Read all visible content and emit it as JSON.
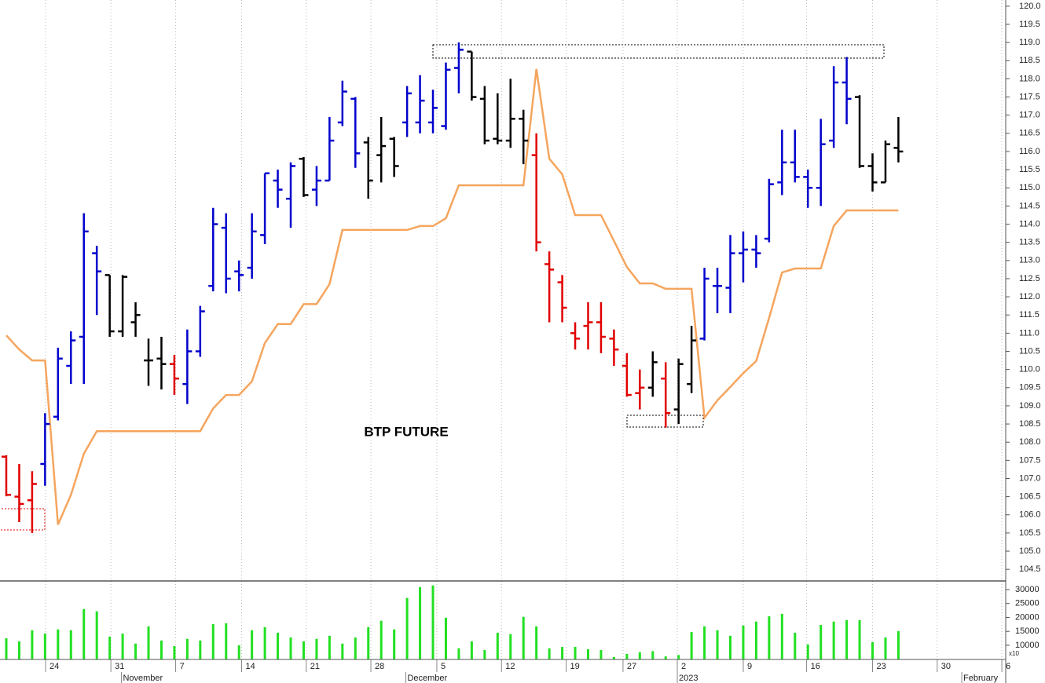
{
  "chart_data": [
    {
      "type": "ohlc",
      "title": "BTP FUTURE",
      "open": [
        107.6,
        106.5,
        106.4,
        107.4,
        108.7,
        110.1,
        110.9,
        113.2,
        112.6,
        111.05,
        111.3,
        110.25,
        110.3,
        110.15,
        109.6,
        110.5,
        112.3,
        113.9,
        112.7,
        112.8,
        113.7,
        115.2,
        114.7,
        115.8,
        114.95,
        115.2,
        116.8,
        117.45,
        116.25,
        115.9,
        116.35,
        116.8,
        116.8,
        116.8,
        116.7,
        118.3,
        118.75,
        117.45,
        116.35,
        116.3,
        116.9,
        115.9,
        112.9,
        112.4,
        111.0,
        111.2,
        111.3,
        110.85,
        110.1,
        109.35,
        109.5,
        109.75,
        108.9,
        109.6,
        110.85,
        112.3,
        112.25,
        113.2,
        113.3,
        113.6,
        115.15,
        115.7,
        115.3,
        115.0,
        116.3,
        117.9,
        117.5,
        115.6,
        115.15,
        116.1
      ],
      "high": [
        107.64,
        107.4,
        107.2,
        108.8,
        110.6,
        111.05,
        114.3,
        113.4,
        112.6,
        112.6,
        111.85,
        110.85,
        110.9,
        110.4,
        111.1,
        111.75,
        114.45,
        114.3,
        113.0,
        114.3,
        115.4,
        115.5,
        115.7,
        115.85,
        115.6,
        116.95,
        117.95,
        117.5,
        116.4,
        116.95,
        116.4,
        117.8,
        118.1,
        117.7,
        118.45,
        119.0,
        118.75,
        117.8,
        117.6,
        118.0,
        117.15,
        116.5,
        113.25,
        112.6,
        111.3,
        111.85,
        111.85,
        111.1,
        110.45,
        110.0,
        110.5,
        110.2,
        110.3,
        111.2,
        112.8,
        112.8,
        113.7,
        113.8,
        113.7,
        115.25,
        116.6,
        116.6,
        115.5,
        116.9,
        118.35,
        118.6,
        117.55,
        115.95,
        116.3,
        116.95
      ],
      "low": [
        106.51,
        105.8,
        105.5,
        106.8,
        108.6,
        109.6,
        109.6,
        111.5,
        110.9,
        110.9,
        110.9,
        109.55,
        109.45,
        109.3,
        109.05,
        110.35,
        112.15,
        112.1,
        112.15,
        112.5,
        113.45,
        114.45,
        113.9,
        114.75,
        114.5,
        115.2,
        116.7,
        115.55,
        114.7,
        115.15,
        115.3,
        116.4,
        116.5,
        116.5,
        116.6,
        117.6,
        117.4,
        116.2,
        116.2,
        116.1,
        115.65,
        113.25,
        111.3,
        111.3,
        110.55,
        110.55,
        110.45,
        110.1,
        109.25,
        108.9,
        109.25,
        108.4,
        108.5,
        109.35,
        110.8,
        111.55,
        111.55,
        112.4,
        112.8,
        113.5,
        114.8,
        115.15,
        114.45,
        114.5,
        116.1,
        116.75,
        115.55,
        114.9,
        115.15,
        115.7
      ],
      "close": [
        106.55,
        106.3,
        106.85,
        108.5,
        110.3,
        110.8,
        113.8,
        112.7,
        111.05,
        112.55,
        111.5,
        110.25,
        110.15,
        109.75,
        110.5,
        111.6,
        114.0,
        112.5,
        112.6,
        113.8,
        115.4,
        114.95,
        115.6,
        114.8,
        115.2,
        116.3,
        117.65,
        115.95,
        115.2,
        116.15,
        115.6,
        117.6,
        117.4,
        117.2,
        118.25,
        118.8,
        117.5,
        116.3,
        116.3,
        116.9,
        116.3,
        113.5,
        112.75,
        111.7,
        110.85,
        111.3,
        110.9,
        110.55,
        109.3,
        109.5,
        110.2,
        108.8,
        110.15,
        110.8,
        112.5,
        112.3,
        113.2,
        113.3,
        113.2,
        115.1,
        115.7,
        115.3,
        115.0,
        116.2,
        117.9,
        117.45,
        115.6,
        115.15,
        116.2,
        116.0
      ],
      "colors": [
        "#e00000",
        "#e00000",
        "#e00000",
        "#0000cc",
        "#0000cc",
        "#0000cc",
        "#0000cc",
        "#0000cc",
        "#000000",
        "#000000",
        "#000000",
        "#000000",
        "#000000",
        "#e00000",
        "#0000cc",
        "#0000cc",
        "#0000cc",
        "#0000cc",
        "#0000cc",
        "#0000cc",
        "#0000cc",
        "#0000cc",
        "#0000cc",
        "#000000",
        "#0000cc",
        "#0000cc",
        "#0000cc",
        "#0000cc",
        "#000000",
        "#000000",
        "#000000",
        "#0000cc",
        "#0000cc",
        "#0000cc",
        "#0000cc",
        "#0000cc",
        "#000000",
        "#000000",
        "#000000",
        "#000000",
        "#000000",
        "#e00000",
        "#e00000",
        "#e00000",
        "#e00000",
        "#e00000",
        "#e00000",
        "#e00000",
        "#e00000",
        "#e00000",
        "#000000",
        "#e00000",
        "#000000",
        "#000000",
        "#0000cc",
        "#0000cc",
        "#0000cc",
        "#0000cc",
        "#0000cc",
        "#0000cc",
        "#0000cc",
        "#0000cc",
        "#0000cc",
        "#0000cc",
        "#0000cc",
        "#0000cc",
        "#000000",
        "#000000",
        "#000000",
        "#000000"
      ],
      "line": {
        "color": "#f5a55e",
        "values": [
          110.94,
          110.55,
          110.25,
          110.25,
          105.73,
          106.55,
          107.68,
          108.3,
          108.3,
          108.3,
          108.3,
          108.3,
          108.3,
          108.3,
          108.3,
          108.3,
          108.93,
          109.3,
          109.3,
          109.67,
          110.73,
          111.25,
          111.25,
          111.8,
          111.8,
          112.35,
          113.84,
          113.84,
          113.84,
          113.84,
          113.84,
          113.84,
          113.95,
          113.95,
          114.16,
          115.07,
          115.07,
          115.07,
          115.07,
          115.07,
          115.07,
          118.27,
          115.8,
          115.37,
          114.25,
          114.25,
          114.25,
          113.54,
          112.82,
          112.37,
          112.37,
          112.22,
          112.22,
          112.22,
          108.67,
          109.15,
          109.52,
          109.9,
          110.23,
          111.42,
          112.67,
          112.78,
          112.78,
          112.78,
          113.95,
          114.38,
          114.38,
          114.38,
          114.38,
          114.38
        ]
      },
      "xlim": [
        -0.486,
        77.3
      ],
      "xticks": [
        {
          "value": 3.04,
          "label": "24"
        },
        {
          "value": 8.09,
          "label": "31"
        },
        {
          "value": 13.1,
          "label": "7"
        },
        {
          "value": 18.2,
          "label": "14"
        },
        {
          "value": 23.2,
          "label": "21"
        },
        {
          "value": 28.2,
          "label": "28"
        },
        {
          "value": 33.3,
          "label": "5"
        },
        {
          "value": 38.3,
          "label": "12"
        },
        {
          "value": 43.3,
          "label": "19"
        },
        {
          "value": 47.7,
          "label": "27"
        },
        {
          "value": 51.9,
          "label": "2"
        },
        {
          "value": 57.0,
          "label": "9"
        },
        {
          "value": 61.9,
          "label": "16"
        },
        {
          "value": 67.0,
          "label": "23"
        },
        {
          "value": 72.0,
          "label": "30"
        },
        {
          "value": 77.0,
          "label": "6"
        }
      ],
      "month_labels": [
        {
          "value": 8.9,
          "label": "November"
        },
        {
          "value": 30.9,
          "label": "December"
        },
        {
          "value": 51.9,
          "label": "2023"
        },
        {
          "value": 73.9,
          "label": "February"
        }
      ],
      "ylim": [
        104.18,
        120.17
      ],
      "yticks": [
        {
          "value": 104.5,
          "label": "104.5"
        },
        {
          "value": 105,
          "label": "105.0"
        },
        {
          "value": 105.5,
          "label": "105.5"
        },
        {
          "value": 106,
          "label": "106.0"
        },
        {
          "value": 106.5,
          "label": "106.5"
        },
        {
          "value": 107,
          "label": "107.0"
        },
        {
          "value": 107.5,
          "label": "107.5"
        },
        {
          "value": 108,
          "label": "108.0"
        },
        {
          "value": 108.5,
          "label": "108.5"
        },
        {
          "value": 109,
          "label": "109.0"
        },
        {
          "value": 109.5,
          "label": "109.5"
        },
        {
          "value": 110,
          "label": "110.0"
        },
        {
          "value": 110.5,
          "label": "110.5"
        },
        {
          "value": 111,
          "label": "111.0"
        },
        {
          "value": 111.5,
          "label": "111.5"
        },
        {
          "value": 112,
          "label": "112.0"
        },
        {
          "value": 112.5,
          "label": "112.5"
        },
        {
          "value": 113,
          "label": "113.0"
        },
        {
          "value": 113.5,
          "label": "113.5"
        },
        {
          "value": 114,
          "label": "114.0"
        },
        {
          "value": 114.5,
          "label": "114.5"
        },
        {
          "value": 115,
          "label": "115.0"
        },
        {
          "value": 115.5,
          "label": "115.5"
        },
        {
          "value": 116,
          "label": "116.0"
        },
        {
          "value": 116.5,
          "label": "116.5"
        },
        {
          "value": 117,
          "label": "117.0"
        },
        {
          "value": 117.5,
          "label": "117.5"
        },
        {
          "value": 118,
          "label": "118.0"
        },
        {
          "value": 118.5,
          "label": "118.5"
        },
        {
          "value": 119,
          "label": "119.0"
        },
        {
          "value": 119.5,
          "label": "119.5"
        },
        {
          "value": 120,
          "label": "120.0"
        }
      ],
      "grid": true
    },
    {
      "type": "volume",
      "color": "#22e022",
      "values": [
        12500,
        11400,
        15400,
        14200,
        15700,
        15400,
        23000,
        22200,
        13100,
        14200,
        10600,
        16800,
        11700,
        9700,
        12300,
        11700,
        17600,
        17900,
        10000,
        15400,
        16500,
        14500,
        12800,
        11400,
        12300,
        13400,
        10600,
        12800,
        16500,
        18800,
        15700,
        27000,
        30900,
        31500,
        19900,
        8900,
        11400,
        8300,
        14500,
        14000,
        20200,
        16800,
        8900,
        9400,
        9400,
        8600,
        8300,
        5800,
        6900,
        7500,
        7900,
        6000,
        6500,
        14800,
        16800,
        15400,
        13400,
        17100,
        18500,
        20400,
        21300,
        14500,
        10300,
        17300,
        18500,
        19000,
        19000,
        11100,
        12800,
        15100
      ],
      "ylim": [
        4900,
        33100
      ],
      "yticks": [
        10000,
        15000,
        20000,
        25000,
        30000
      ],
      "multiplier_label": "x10"
    }
  ]
}
